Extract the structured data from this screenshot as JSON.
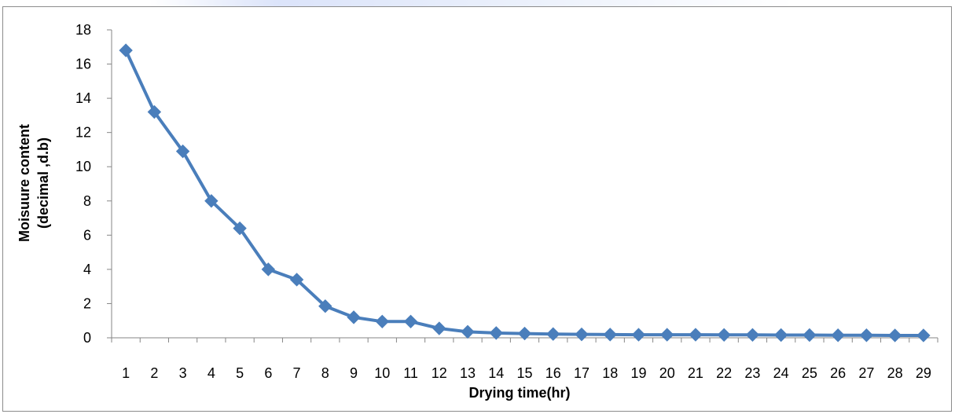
{
  "chart_data": {
    "type": "line",
    "title": "",
    "xlabel": "Drying time(hr)",
    "ylabel_lines": [
      "Moisuure content",
      "(decimal ,d.b)"
    ],
    "categories": [
      "1",
      "2",
      "3",
      "4",
      "5",
      "6",
      "7",
      "8",
      "9",
      "10",
      "11",
      "12",
      "13",
      "14",
      "15",
      "16",
      "17",
      "18",
      "19",
      "20",
      "21",
      "22",
      "23",
      "24",
      "25",
      "26",
      "27",
      "28",
      "29"
    ],
    "series": [
      {
        "values": [
          16.8,
          13.2,
          10.9,
          8.0,
          6.4,
          4.0,
          3.4,
          1.85,
          1.2,
          0.95,
          0.95,
          0.55,
          0.35,
          0.28,
          0.25,
          0.22,
          0.2,
          0.19,
          0.18,
          0.18,
          0.18,
          0.17,
          0.17,
          0.16,
          0.16,
          0.15,
          0.15,
          0.14,
          0.14
        ],
        "color": "#4a7ebb"
      }
    ],
    "ylim": [
      0,
      18
    ],
    "yticks": [
      "0",
      "2",
      "4",
      "6",
      "8",
      "10",
      "12",
      "14",
      "16",
      "18"
    ],
    "grid": false,
    "legend": "none",
    "marker": "diamond"
  }
}
